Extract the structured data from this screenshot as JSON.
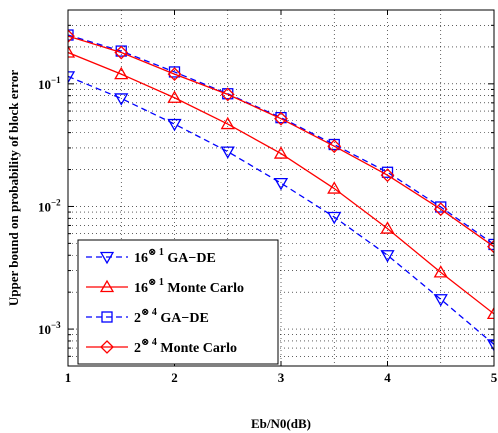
{
  "chart_data": {
    "type": "line",
    "xlabel": "Eb/N0(dB)",
    "ylabel": "Upper bound on probability of block error",
    "xlim": [
      1,
      5
    ],
    "ylim": [
      0.0005,
      0.4
    ],
    "yscale": "log",
    "grid": true,
    "x_ticks": [
      "1",
      "2",
      "3",
      "4",
      "5"
    ],
    "y_ticks": [
      {
        "value": 0.1,
        "base": "10",
        "exp": "−1"
      },
      {
        "value": 0.01,
        "base": "10",
        "exp": "−2"
      },
      {
        "value": 0.001,
        "base": "10",
        "exp": "−3"
      }
    ],
    "legend": {
      "position": "bottom-left"
    },
    "series": [
      {
        "name_base": "16",
        "name_super": "⊗ 1",
        "name_suffix": " GA−DE",
        "color": "#0000ff",
        "dash": "dashed",
        "marker": "triangle-down",
        "x": [
          1,
          1.5,
          2,
          2.5,
          3,
          3.5,
          4,
          4.5,
          5
        ],
        "values": [
          0.115,
          0.076,
          0.047,
          0.028,
          0.0155,
          0.0082,
          0.004,
          0.00175,
          0.00075
        ]
      },
      {
        "name_base": "16",
        "name_super": "⊗ 1",
        "name_suffix": " Monte  Carlo",
        "color": "#ff0000",
        "dash": "solid",
        "marker": "triangle-up",
        "x": [
          1,
          1.5,
          2,
          2.5,
          3,
          3.5,
          4,
          4.5,
          5
        ],
        "values": [
          0.18,
          0.12,
          0.077,
          0.047,
          0.027,
          0.014,
          0.0066,
          0.0029,
          0.00133
        ]
      },
      {
        "name_base": "2",
        "name_super": "⊗ 4",
        "name_suffix": " GA−DE",
        "color": "#0000ff",
        "dash": "dashed",
        "marker": "square",
        "x": [
          1,
          1.5,
          2,
          2.5,
          3,
          3.5,
          4,
          4.5,
          5
        ],
        "values": [
          0.25,
          0.185,
          0.125,
          0.083,
          0.053,
          0.032,
          0.019,
          0.0099,
          0.0049
        ]
      },
      {
        "name_base": "2",
        "name_super": "⊗ 4",
        "name_suffix": " Monte Carlo",
        "color": "#ff0000",
        "dash": "solid",
        "marker": "diamond",
        "x": [
          1,
          1.5,
          2,
          2.5,
          3,
          3.5,
          4,
          4.5,
          5
        ],
        "values": [
          0.245,
          0.18,
          0.12,
          0.082,
          0.052,
          0.031,
          0.018,
          0.0095,
          0.0047
        ]
      }
    ]
  }
}
